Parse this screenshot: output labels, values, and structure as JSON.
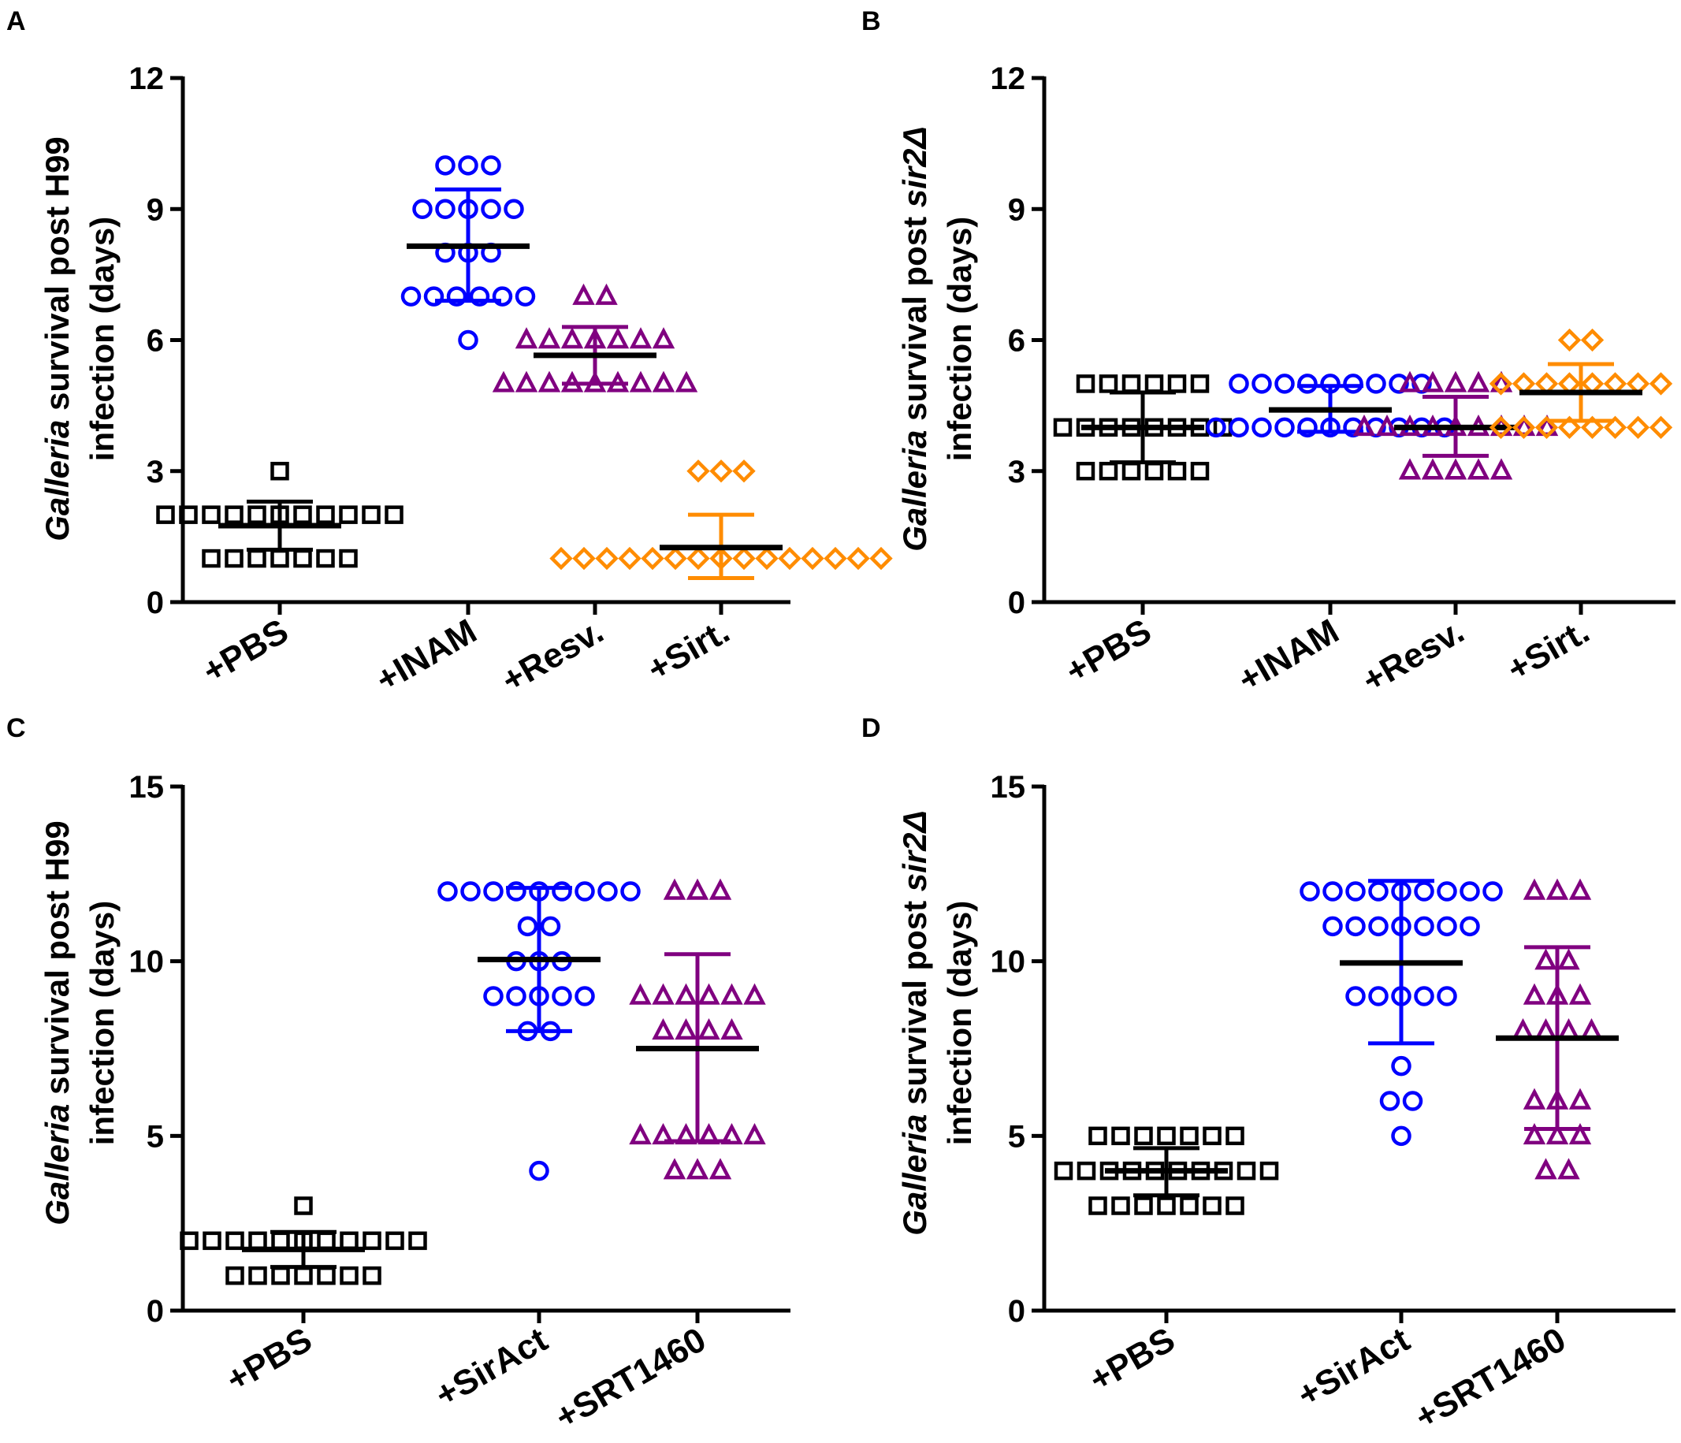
{
  "figure": {
    "panels": [
      {
        "letter": "A",
        "ylabel": {
          "italic": "Galleria",
          "line1_rest": " survival post H99",
          "line2": "infection (days)"
        },
        "yticks": [
          "0",
          "3",
          "6",
          "9",
          "12"
        ]
      },
      {
        "letter": "B",
        "ylabel": {
          "italic": "Galleria",
          "line1_rest": " survival post ",
          "italic2": "sir2Δ",
          "line2": "infection (days)"
        },
        "yticks": [
          "0",
          "3",
          "6",
          "9",
          "12"
        ]
      },
      {
        "letter": "C",
        "ylabel": {
          "italic": "Galleria",
          "line1_rest": " survival post H99",
          "line2": "infection (days)"
        },
        "yticks": [
          "0",
          "5",
          "10",
          "15"
        ]
      },
      {
        "letter": "D",
        "ylabel": {
          "italic": "Galleria",
          "line1_rest": " survival post ",
          "italic2": "sir2Δ",
          "line2": "infection (days)"
        },
        "yticks": [
          "0",
          "5",
          "10",
          "15"
        ]
      }
    ]
  },
  "chart_data": [
    {
      "panel": "A",
      "type": "scatter",
      "ylabel": "Galleria survival post H99 infection (days)",
      "ylim": [
        0,
        12
      ],
      "yticks": [
        0,
        3,
        6,
        9,
        12
      ],
      "categories": [
        "+PBS",
        "+INAM",
        "+Resv.",
        "+Sirt."
      ],
      "groups": [
        {
          "name": "+PBS",
          "color": "#000000",
          "marker": "square",
          "values": [
            3,
            2,
            2,
            2,
            2,
            2,
            2,
            2,
            2,
            2,
            2,
            2,
            1,
            1,
            1,
            1,
            1,
            1,
            1
          ],
          "mean": 1.75,
          "err_low": 1.2,
          "err_high": 2.3
        },
        {
          "name": "+INAM",
          "color": "#0000ff",
          "marker": "circle",
          "values": [
            10,
            10,
            10,
            9,
            9,
            9,
            9,
            9,
            8,
            8,
            8,
            7,
            7,
            7,
            7,
            7,
            7,
            6
          ],
          "mean": 8.15,
          "err_low": 6.9,
          "err_high": 9.45
        },
        {
          "name": "+Resv.",
          "color": "#800080",
          "marker": "triangle",
          "values": [
            7,
            7,
            6,
            6,
            6,
            6,
            6,
            6,
            6,
            5,
            5,
            5,
            5,
            5,
            5,
            5,
            5,
            5
          ],
          "mean": 5.65,
          "err_low": 5.0,
          "err_high": 6.3
        },
        {
          "name": "+Sirt.",
          "color": "#ff8c00",
          "marker": "diamond",
          "values": [
            3,
            3,
            3,
            1,
            1,
            1,
            1,
            1,
            1,
            1,
            1,
            1,
            1,
            1,
            1,
            1,
            1,
            1
          ],
          "mean": 1.25,
          "err_low": 0.55,
          "err_high": 2.0
        }
      ]
    },
    {
      "panel": "B",
      "type": "scatter",
      "ylabel": "Galleria survival post sir2Δ infection (days)",
      "ylim": [
        0,
        12
      ],
      "yticks": [
        0,
        3,
        6,
        9,
        12
      ],
      "categories": [
        "+PBS",
        "+INAM",
        "+Resv.",
        "+Sirt."
      ],
      "groups": [
        {
          "name": "+PBS",
          "color": "#000000",
          "marker": "square",
          "values": [
            5,
            5,
            5,
            5,
            5,
            5,
            4,
            4,
            4,
            4,
            4,
            4,
            4,
            4,
            3,
            3,
            3,
            3,
            3,
            3
          ],
          "mean": 4.0,
          "err_low": 3.2,
          "err_high": 4.8
        },
        {
          "name": "+INAM",
          "color": "#0000ff",
          "marker": "circle",
          "values": [
            5,
            5,
            5,
            5,
            5,
            5,
            5,
            5,
            5,
            4,
            4,
            4,
            4,
            4,
            4,
            4,
            4,
            4,
            4,
            4
          ],
          "mean": 4.4,
          "err_low": 3.9,
          "err_high": 4.95
        },
        {
          "name": "+Resv.",
          "color": "#800080",
          "marker": "triangle",
          "values": [
            5,
            5,
            5,
            5,
            5,
            4,
            4,
            4,
            4,
            4,
            4,
            4,
            4,
            4,
            3,
            3,
            3,
            3,
            3
          ],
          "mean": 4.0,
          "err_low": 3.35,
          "err_high": 4.7
        },
        {
          "name": "+Sirt.",
          "color": "#ff8c00",
          "marker": "diamond",
          "values": [
            6,
            6,
            5,
            5,
            5,
            5,
            5,
            5,
            5,
            5,
            4,
            4,
            4,
            4,
            4,
            4,
            4,
            4
          ],
          "mean": 4.8,
          "err_low": 4.15,
          "err_high": 5.45
        }
      ]
    },
    {
      "panel": "C",
      "type": "scatter",
      "ylabel": "Galleria survival post H99 infection (days)",
      "ylim": [
        0,
        15
      ],
      "yticks": [
        0,
        5,
        10,
        15
      ],
      "categories": [
        "+PBS",
        "+SirAct",
        "+SRT1460"
      ],
      "groups": [
        {
          "name": "+PBS",
          "color": "#000000",
          "marker": "square",
          "values": [
            3,
            2,
            2,
            2,
            2,
            2,
            2,
            2,
            2,
            2,
            2,
            2,
            1,
            1,
            1,
            1,
            1,
            1,
            1
          ],
          "mean": 1.75,
          "err_low": 1.25,
          "err_high": 2.25
        },
        {
          "name": "+SirAct",
          "color": "#0000ff",
          "marker": "circle",
          "values": [
            12,
            12,
            12,
            12,
            12,
            12,
            12,
            12,
            12,
            11,
            11,
            10,
            10,
            10,
            9,
            9,
            9,
            9,
            9,
            8,
            8,
            4
          ],
          "mean": 10.05,
          "err_low": 8.0,
          "err_high": 12.1
        },
        {
          "name": "+SRT1460",
          "color": "#800080",
          "marker": "triangle",
          "values": [
            12,
            12,
            12,
            9,
            9,
            9,
            9,
            9,
            9,
            8,
            8,
            8,
            8,
            5,
            5,
            5,
            5,
            5,
            5,
            4,
            4,
            4
          ],
          "mean": 7.5,
          "err_low": 4.85,
          "err_high": 10.2
        }
      ]
    },
    {
      "panel": "D",
      "type": "scatter",
      "ylabel": "Galleria survival post sir2Δ infection (days)",
      "ylim": [
        0,
        15
      ],
      "yticks": [
        0,
        5,
        10,
        15
      ],
      "categories": [
        "+PBS",
        "+SirAct",
        "+SRT1460"
      ],
      "groups": [
        {
          "name": "+PBS",
          "color": "#000000",
          "marker": "square",
          "values": [
            5,
            5,
            5,
            5,
            5,
            5,
            5,
            4,
            4,
            4,
            4,
            4,
            4,
            4,
            4,
            4,
            4,
            3,
            3,
            3,
            3,
            3,
            3,
            3
          ],
          "mean": 4.0,
          "err_low": 3.3,
          "err_high": 4.65
        },
        {
          "name": "+SirAct",
          "color": "#0000ff",
          "marker": "circle",
          "values": [
            12,
            12,
            12,
            12,
            12,
            12,
            12,
            12,
            12,
            11,
            11,
            11,
            11,
            11,
            11,
            11,
            9,
            9,
            9,
            9,
            9,
            7,
            6,
            6,
            5
          ],
          "mean": 9.95,
          "err_low": 7.65,
          "err_high": 12.3
        },
        {
          "name": "+SRT1460",
          "color": "#800080",
          "marker": "triangle",
          "values": [
            12,
            12,
            12,
            10,
            10,
            9,
            9,
            9,
            8,
            8,
            8,
            8,
            6,
            6,
            6,
            5,
            5,
            5,
            4,
            4
          ],
          "mean": 7.8,
          "err_low": 5.2,
          "err_high": 10.4
        }
      ]
    }
  ]
}
